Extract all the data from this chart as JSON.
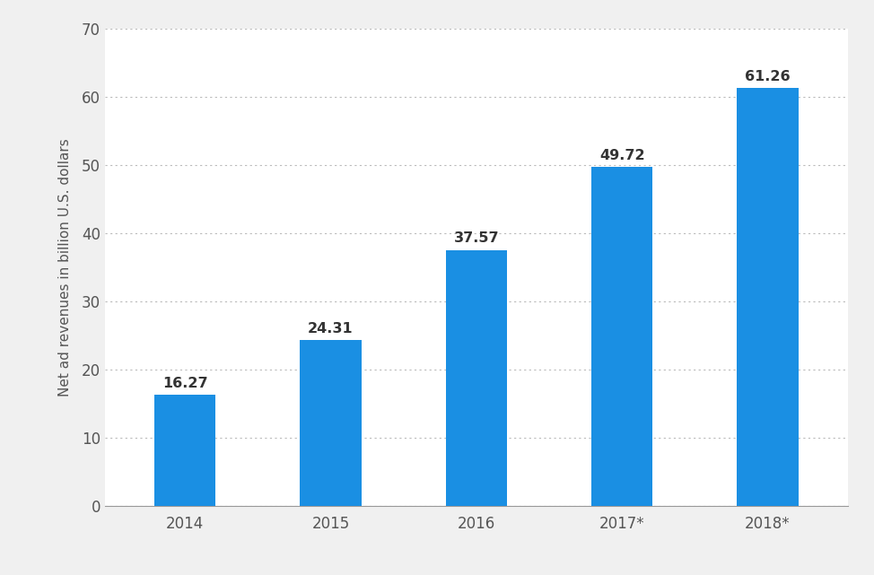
{
  "categories": [
    "2014",
    "2015",
    "2016",
    "2017*",
    "2018*"
  ],
  "values": [
    16.27,
    24.31,
    37.57,
    49.72,
    61.26
  ],
  "bar_color": "#1a8fe3",
  "ylabel": "Net ad revenues in billion U.S. dollars",
  "ylim": [
    0,
    70
  ],
  "yticks": [
    0,
    10,
    20,
    30,
    40,
    50,
    60,
    70
  ],
  "background_color": "#f0f0f0",
  "plot_bg_color": "#ffffff",
  "grid_color": "#bbbbbb",
  "tick_fontsize": 12,
  "ylabel_fontsize": 11,
  "bar_width": 0.42,
  "annotation_fontsize": 11.5
}
